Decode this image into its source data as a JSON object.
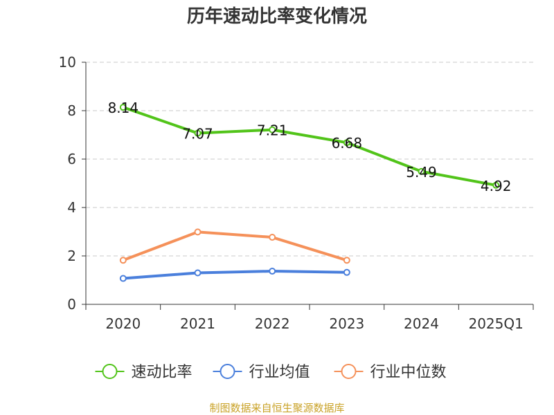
{
  "chart_data": {
    "type": "line",
    "title": "历年速动比率变化情况",
    "categories": [
      "2020",
      "2021",
      "2022",
      "2023",
      "2024",
      "2025Q1"
    ],
    "ylim": [
      0,
      10
    ],
    "yticks": [
      0,
      2,
      4,
      6,
      8,
      10
    ],
    "grid": true,
    "legend_position": "bottom",
    "series": [
      {
        "name": "速动比率",
        "color": "#52c41a",
        "values": [
          8.14,
          7.07,
          7.21,
          6.68,
          5.49,
          4.92
        ],
        "labels": [
          "8.14",
          "7.07",
          "7.21",
          "6.68",
          "5.49",
          "4.92"
        ]
      },
      {
        "name": "行业均值",
        "color": "#4a7fdc",
        "values": [
          1.07,
          1.3,
          1.37,
          1.32,
          null,
          null
        ]
      },
      {
        "name": "行业中位数",
        "color": "#f5915a",
        "values": [
          1.82,
          2.99,
          2.77,
          1.82,
          null,
          null
        ]
      }
    ]
  },
  "source_text": "制图数据来自恒生聚源数据库"
}
